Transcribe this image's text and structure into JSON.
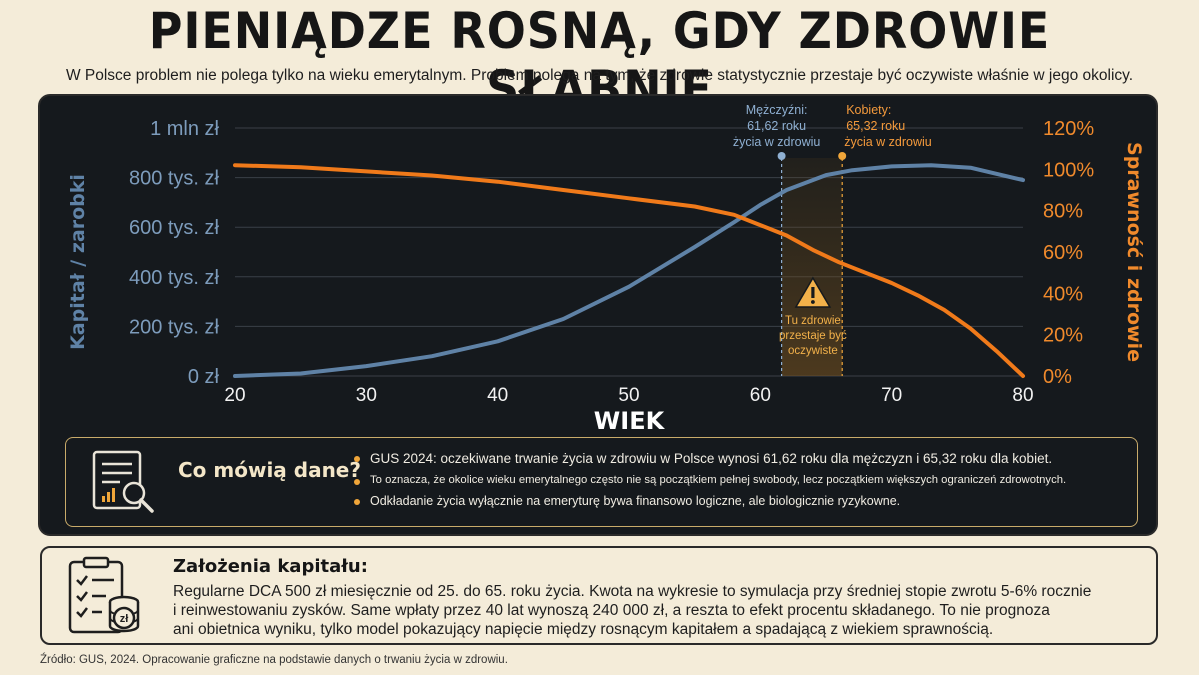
{
  "header": {
    "title": "PIENIĄDZE ROSNĄ, GDY ZDROWIE SŁABNIE",
    "subtitle": "W Polsce problem nie polega tylko na wieku emerytalnym. Problem polega na tym, że zdrowie statystycznie przestaje być oczywiste właśnie w jego okolicy."
  },
  "chart_data": {
    "type": "line",
    "xlabel": "WIEK",
    "ylabel_left": "Kapitał / zarobki",
    "ylabel_right": "Sprawność i zdrowie",
    "x_ticks": [
      "20",
      "30",
      "40",
      "50",
      "60",
      "70",
      "80"
    ],
    "y_left_ticks": [
      "0 zł",
      "200 tys. zł",
      "400 tys. zł",
      "600 tys. zł",
      "800 tys. zł",
      "1 mln zł"
    ],
    "y_right_ticks": [
      "0%",
      "20%",
      "40%",
      "60%",
      "80%",
      "100%",
      "120%"
    ],
    "xlim": [
      20,
      80
    ],
    "ylim_left": [
      0,
      1000000
    ],
    "ylim_right": [
      0,
      120
    ],
    "grid": true,
    "series": [
      {
        "axis": "left",
        "color": "#5f82a6",
        "x": [
          20,
          25,
          30,
          35,
          40,
          45,
          50,
          55,
          58,
          60,
          62,
          65,
          67,
          70,
          73,
          76,
          80
        ],
        "y": [
          0,
          10000,
          40000,
          80000,
          140000,
          230000,
          360000,
          520000,
          620000,
          690000,
          750000,
          810000,
          830000,
          845000,
          850000,
          840000,
          790000
        ]
      },
      {
        "axis": "right",
        "color": "#f07a1a",
        "x": [
          20,
          25,
          30,
          35,
          40,
          45,
          50,
          55,
          58,
          60,
          62,
          64,
          66,
          68,
          70,
          72,
          74,
          76,
          78,
          80
        ],
        "y": [
          102,
          101,
          99,
          97,
          94,
          90,
          86,
          82,
          78,
          73,
          68,
          61,
          55,
          50,
          45,
          39,
          32,
          23,
          12,
          0
        ]
      }
    ],
    "annotations": {
      "men": {
        "x": 61.62,
        "lines": [
          "Mężczyźni:",
          "61,62 roku",
          "życia w zdrowiu"
        ]
      },
      "women": {
        "x": 65.32,
        "lines": [
          "Kobiety:",
          "65,32 roku",
          "życia w zdrowiu"
        ]
      },
      "warning": {
        "lines": [
          "Tu zdrowie",
          "przestaje być",
          "oczywiste"
        ]
      }
    }
  },
  "facts": {
    "title": "Co mówią dane?",
    "items": [
      "GUS 2024: oczekiwane trwanie życia w zdrowiu w Polsce wynosi 61,62 roku dla mężczyzn i 65,32 roku dla kobiet.",
      "To oznacza, że okolice wieku emerytalnego często nie są początkiem pełnej swobody, lecz początkiem większych ograniczeń zdrowotnych.",
      "Odkładanie życia wyłącznie na emeryturę bywa finansowo logiczne, ale biologicznie ryzykowne."
    ]
  },
  "capital": {
    "title": "Założenia kapitału:",
    "lines": [
      "Regularne DCA 500 zł miesięcznie od 25. do 65. roku życia. Kwota na wykresie to symulacja przy średniej stopie zwrotu 5-6% rocznie",
      "i reinwestowaniu zysków. Same wpłaty przez 40 lat wynoszą 240 000 zł, a reszta to efekt procentu składanego. To nie prognoza",
      "ani obietnica wyniku, tylko model pokazujący napięcie między rosnącym kapitałem a spadającą z wiekiem sprawnością."
    ],
    "icon_label": "zł"
  },
  "source": "Źródło: GUS, 2024. Opracowanie graficzne na podstawie danych o trwaniu życia w zdrowiu."
}
